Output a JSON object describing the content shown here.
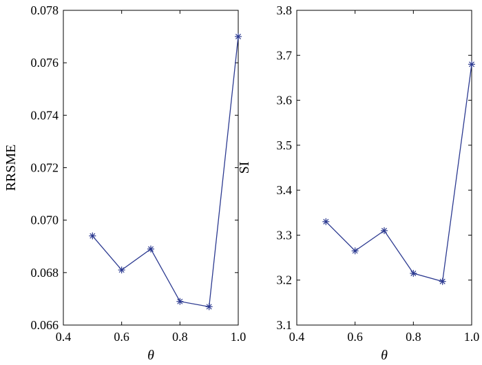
{
  "chart_data": [
    {
      "type": "line",
      "xlabel": "θ",
      "ylabel": "RRSME",
      "xlim": [
        0.4,
        1.0
      ],
      "ylim": [
        0.066,
        0.078
      ],
      "xticks": [
        "0.4",
        "0.6",
        "0.8",
        "1.0"
      ],
      "yticks": [
        "0.066",
        "0.068",
        "0.070",
        "0.072",
        "0.074",
        "0.076",
        "0.078"
      ],
      "x": [
        0.5,
        0.6,
        0.7,
        0.8,
        0.9,
        1.0
      ],
      "series": [
        {
          "values": [
            0.0694,
            0.0681,
            0.0689,
            0.0669,
            0.0667,
            0.077
          ],
          "color": "#2b3990",
          "marker": "asterisk"
        }
      ],
      "grid": false
    },
    {
      "type": "line",
      "xlabel": "θ",
      "ylabel": "SI",
      "xlim": [
        0.4,
        1.0
      ],
      "ylim": [
        3.1,
        3.8
      ],
      "xticks": [
        "0.4",
        "0.6",
        "0.8",
        "1.0"
      ],
      "yticks": [
        "3.1",
        "3.2",
        "3.3",
        "3.4",
        "3.5",
        "3.6",
        "3.7",
        "3.8"
      ],
      "x": [
        0.5,
        0.6,
        0.7,
        0.8,
        0.9,
        1.0
      ],
      "series": [
        {
          "values": [
            3.33,
            3.265,
            3.31,
            3.215,
            3.197,
            3.68
          ],
          "color": "#2b3990",
          "marker": "asterisk"
        }
      ],
      "grid": false
    }
  ]
}
